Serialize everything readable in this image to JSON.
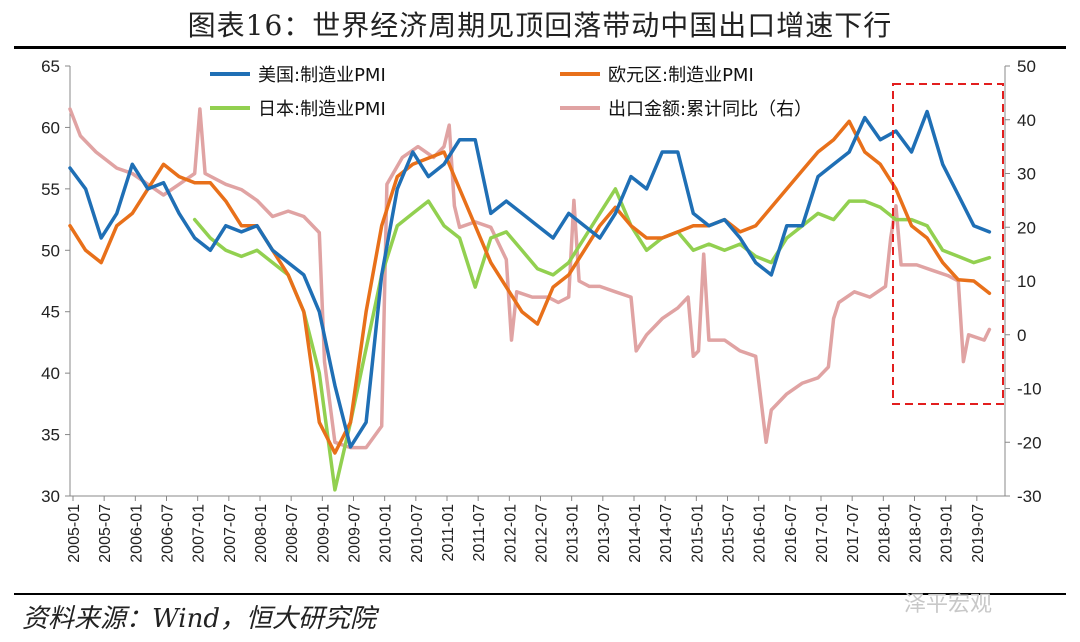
{
  "title": "图表16：世界经济周期见顶回落带动中国出口增速下行",
  "source": "资料来源：Wind，恒大研究院",
  "watermark": "泽平宏观",
  "chart_data": {
    "type": "line",
    "left_axis": {
      "min": 30,
      "max": 65,
      "ticks": [
        30,
        35,
        40,
        45,
        50,
        55,
        60,
        65
      ]
    },
    "right_axis": {
      "min": -30,
      "max": 50,
      "ticks": [
        -30,
        -20,
        -10,
        0,
        10,
        20,
        30,
        40,
        50
      ]
    },
    "x_tick_labels": [
      "2005-01",
      "2005-07",
      "2006-01",
      "2006-07",
      "2007-01",
      "2007-07",
      "2008-01",
      "2008-07",
      "2009-01",
      "2009-07",
      "2010-01",
      "2010-07",
      "2011-01",
      "2011-07",
      "2012-01",
      "2012-07",
      "2013-01",
      "2013-07",
      "2014-01",
      "2014-07",
      "2015-01",
      "2015-07",
      "2016-01",
      "2016-07",
      "2017-01",
      "2017-07",
      "2018-01",
      "2018-07",
      "2019-01",
      "2019-07"
    ],
    "legend": [
      "美国:制造业PMI",
      "欧元区:制造业PMI",
      "日本:制造业PMI",
      "出口金额:累计同比（右）"
    ],
    "series": [
      {
        "name": "美国:制造业PMI",
        "axis": "left",
        "color": "#1f6fb5",
        "points": [
          [
            0,
            56.7
          ],
          [
            3,
            55
          ],
          [
            6,
            51
          ],
          [
            9,
            53
          ],
          [
            12,
            57
          ],
          [
            15,
            55
          ],
          [
            18,
            55.5
          ],
          [
            21,
            53
          ],
          [
            24,
            51
          ],
          [
            27,
            50
          ],
          [
            30,
            52
          ],
          [
            33,
            51.5
          ],
          [
            36,
            52
          ],
          [
            39,
            50
          ],
          [
            42,
            49
          ],
          [
            45,
            48
          ],
          [
            48,
            45
          ],
          [
            51,
            39
          ],
          [
            54,
            34
          ],
          [
            57,
            36
          ],
          [
            60,
            48
          ],
          [
            63,
            55
          ],
          [
            66,
            58
          ],
          [
            69,
            56
          ],
          [
            72,
            57
          ],
          [
            75,
            59
          ],
          [
            78,
            59
          ],
          [
            81,
            53
          ],
          [
            84,
            54
          ],
          [
            87,
            53
          ],
          [
            90,
            52
          ],
          [
            93,
            51
          ],
          [
            96,
            53
          ],
          [
            99,
            52
          ],
          [
            102,
            51
          ],
          [
            105,
            53
          ],
          [
            108,
            56
          ],
          [
            111,
            55
          ],
          [
            114,
            58
          ],
          [
            117,
            58
          ],
          [
            120,
            53
          ],
          [
            123,
            52
          ],
          [
            126,
            52.5
          ],
          [
            129,
            51
          ],
          [
            132,
            49
          ],
          [
            135,
            48
          ],
          [
            138,
            52
          ],
          [
            141,
            52
          ],
          [
            144,
            56
          ],
          [
            147,
            57
          ],
          [
            150,
            58
          ],
          [
            153,
            60.8
          ],
          [
            156,
            59
          ],
          [
            159,
            59.7
          ],
          [
            162,
            58
          ],
          [
            165,
            61.3
          ],
          [
            168,
            57
          ],
          [
            171,
            54.5
          ],
          [
            174,
            52
          ],
          [
            177,
            51.5
          ]
        ]
      },
      {
        "name": "欧元区:制造业PMI",
        "axis": "left",
        "color": "#e8701a",
        "points": [
          [
            0,
            52
          ],
          [
            3,
            50
          ],
          [
            6,
            49
          ],
          [
            9,
            52
          ],
          [
            12,
            53
          ],
          [
            15,
            55
          ],
          [
            18,
            57
          ],
          [
            21,
            56
          ],
          [
            24,
            55.5
          ],
          [
            27,
            55.5
          ],
          [
            30,
            54
          ],
          [
            33,
            52
          ],
          [
            36,
            52
          ],
          [
            39,
            50
          ],
          [
            42,
            48
          ],
          [
            45,
            45
          ],
          [
            48,
            36
          ],
          [
            51,
            33.5
          ],
          [
            54,
            36
          ],
          [
            57,
            45
          ],
          [
            60,
            52
          ],
          [
            63,
            56
          ],
          [
            66,
            57
          ],
          [
            69,
            57.5
          ],
          [
            72,
            58
          ],
          [
            75,
            55
          ],
          [
            78,
            52
          ],
          [
            81,
            49
          ],
          [
            84,
            47
          ],
          [
            87,
            45
          ],
          [
            90,
            44
          ],
          [
            93,
            47
          ],
          [
            96,
            48
          ],
          [
            99,
            50
          ],
          [
            102,
            52
          ],
          [
            105,
            53.5
          ],
          [
            108,
            52
          ],
          [
            111,
            51
          ],
          [
            114,
            51
          ],
          [
            117,
            51.5
          ],
          [
            120,
            52
          ],
          [
            123,
            52
          ],
          [
            126,
            52.5
          ],
          [
            129,
            51.5
          ],
          [
            132,
            52
          ],
          [
            135,
            53.5
          ],
          [
            138,
            55
          ],
          [
            141,
            56.5
          ],
          [
            144,
            58
          ],
          [
            147,
            59
          ],
          [
            150,
            60.5
          ],
          [
            153,
            58
          ],
          [
            156,
            57
          ],
          [
            159,
            55
          ],
          [
            162,
            52
          ],
          [
            165,
            51
          ],
          [
            168,
            49
          ],
          [
            171,
            47.6
          ],
          [
            174,
            47.5
          ],
          [
            177,
            46.5
          ]
        ]
      },
      {
        "name": "日本:制造业PMI",
        "axis": "left",
        "color": "#92d050",
        "points": [
          [
            24,
            52.5
          ],
          [
            27,
            51
          ],
          [
            30,
            50
          ],
          [
            33,
            49.5
          ],
          [
            36,
            50
          ],
          [
            39,
            49
          ],
          [
            42,
            48
          ],
          [
            45,
            45
          ],
          [
            48,
            40
          ],
          [
            51,
            30.5
          ],
          [
            54,
            36
          ],
          [
            57,
            42
          ],
          [
            60,
            48
          ],
          [
            63,
            52
          ],
          [
            66,
            53
          ],
          [
            69,
            54
          ],
          [
            72,
            52
          ],
          [
            75,
            51
          ],
          [
            78,
            47
          ],
          [
            81,
            51
          ],
          [
            84,
            51.5
          ],
          [
            87,
            50
          ],
          [
            90,
            48.5
          ],
          [
            93,
            48
          ],
          [
            96,
            49
          ],
          [
            99,
            51
          ],
          [
            102,
            53
          ],
          [
            105,
            55
          ],
          [
            108,
            52
          ],
          [
            111,
            50
          ],
          [
            114,
            51
          ],
          [
            117,
            51.5
          ],
          [
            120,
            50
          ],
          [
            123,
            50.5
          ],
          [
            126,
            50
          ],
          [
            129,
            50.5
          ],
          [
            132,
            49.5
          ],
          [
            135,
            49
          ],
          [
            138,
            51
          ],
          [
            141,
            52
          ],
          [
            144,
            53
          ],
          [
            147,
            52.5
          ],
          [
            150,
            54
          ],
          [
            153,
            54
          ],
          [
            156,
            53.5
          ],
          [
            159,
            52.5
          ],
          [
            162,
            52.5
          ],
          [
            165,
            52
          ],
          [
            168,
            50
          ],
          [
            171,
            49.5
          ],
          [
            174,
            49
          ],
          [
            177,
            49.4
          ]
        ]
      },
      {
        "name": "出口金额:累计同比（右）",
        "axis": "right",
        "color": "#e0a3a3",
        "points": [
          [
            0,
            42
          ],
          [
            2,
            37
          ],
          [
            5,
            34
          ],
          [
            9,
            31
          ],
          [
            12,
            30
          ],
          [
            15,
            28
          ],
          [
            18,
            26
          ],
          [
            21,
            28
          ],
          [
            24,
            30
          ],
          [
            25,
            42
          ],
          [
            26,
            30
          ],
          [
            30,
            28
          ],
          [
            33,
            27
          ],
          [
            36,
            25
          ],
          [
            39,
            22
          ],
          [
            42,
            23
          ],
          [
            45,
            22
          ],
          [
            48,
            19
          ],
          [
            49,
            -5
          ],
          [
            51,
            -20
          ],
          [
            54,
            -21
          ],
          [
            57,
            -21
          ],
          [
            60,
            -17
          ],
          [
            61,
            28
          ],
          [
            64,
            33
          ],
          [
            67,
            35
          ],
          [
            70,
            33
          ],
          [
            72,
            35
          ],
          [
            73,
            39
          ],
          [
            74,
            24
          ],
          [
            75,
            20
          ],
          [
            78,
            21
          ],
          [
            81,
            20
          ],
          [
            84,
            14
          ],
          [
            85,
            -1
          ],
          [
            86,
            8
          ],
          [
            89,
            7
          ],
          [
            92,
            7
          ],
          [
            94,
            6
          ],
          [
            96,
            7
          ],
          [
            97,
            25
          ],
          [
            98,
            10
          ],
          [
            100,
            9
          ],
          [
            102,
            9
          ],
          [
            105,
            8
          ],
          [
            108,
            7
          ],
          [
            109,
            -3
          ],
          [
            111,
            0
          ],
          [
            114,
            3
          ],
          [
            117,
            5
          ],
          [
            119,
            7
          ],
          [
            120,
            -4
          ],
          [
            121,
            -3
          ],
          [
            122,
            15
          ],
          [
            123,
            -1
          ],
          [
            126,
            -1
          ],
          [
            129,
            -3
          ],
          [
            132,
            -4
          ],
          [
            134,
            -20
          ],
          [
            135,
            -14
          ],
          [
            138,
            -11
          ],
          [
            141,
            -9
          ],
          [
            144,
            -8
          ],
          [
            146,
            -6
          ],
          [
            147,
            3
          ],
          [
            148,
            6
          ],
          [
            151,
            8
          ],
          [
            154,
            7
          ],
          [
            157,
            9
          ],
          [
            158,
            18
          ],
          [
            159,
            24
          ],
          [
            160,
            13
          ],
          [
            163,
            13
          ],
          [
            166,
            12
          ],
          [
            169,
            11
          ],
          [
            171,
            10
          ],
          [
            172,
            -5
          ],
          [
            173,
            0
          ],
          [
            176,
            -1
          ],
          [
            177,
            1
          ]
        ]
      }
    ]
  }
}
